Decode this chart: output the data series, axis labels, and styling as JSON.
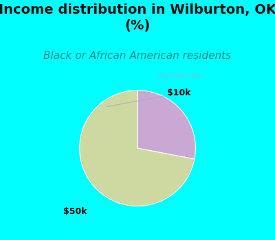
{
  "title": "Income distribution in Wilburton, OK\n(%)",
  "subtitle": "Black or African American residents",
  "title_fontsize": 14,
  "subtitle_fontsize": 11,
  "title_color": "#111111",
  "subtitle_color": "#008888",
  "header_bg": "#00ffff",
  "border_color": "#00ffff",
  "chart_bg_color": "#e8f5ee",
  "slices": [
    {
      "label": "$10k",
      "value": 28,
      "color": "#c9a8d4"
    },
    {
      "label": "$50k",
      "value": 72,
      "color": "#cdd9a0"
    }
  ],
  "label_fontsize": 9,
  "label_color": "#000000",
  "watermark": "City-Data.com",
  "startangle": 90
}
